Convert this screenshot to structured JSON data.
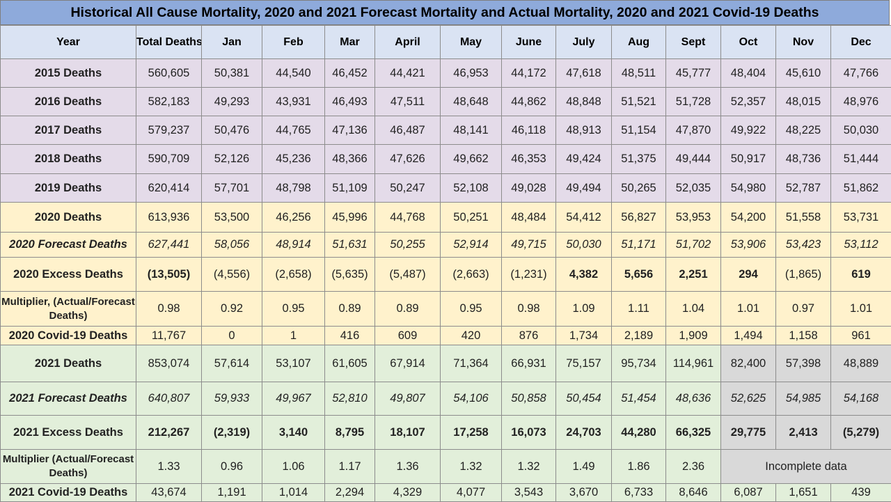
{
  "title": "Historical All Cause Mortality, 2020 and 2021 Forecast Mortality and Actual Mortality, 2020 and 2021 Covid-19 Deaths",
  "headers": [
    "Year",
    "Total Deaths",
    "Jan",
    "Feb",
    "Mar",
    "April",
    "May",
    "June",
    "July",
    "Aug",
    "Sept",
    "Oct",
    "Nov",
    "Dec"
  ],
  "rows": [
    {
      "label": "2015 Deaths",
      "values": [
        "560,605",
        "50,381",
        "44,540",
        "46,452",
        "44,421",
        "46,953",
        "44,172",
        "47,618",
        "48,511",
        "45,777",
        "48,404",
        "45,610",
        "47,766"
      ]
    },
    {
      "label": "2016 Deaths",
      "values": [
        "582,183",
        "49,293",
        "43,931",
        "46,493",
        "47,511",
        "48,648",
        "44,862",
        "48,848",
        "51,521",
        "51,728",
        "52,357",
        "48,015",
        "48,976"
      ]
    },
    {
      "label": "2017 Deaths",
      "values": [
        "579,237",
        "50,476",
        "44,765",
        "47,136",
        "46,487",
        "48,141",
        "46,118",
        "48,913",
        "51,154",
        "47,870",
        "49,922",
        "48,225",
        "50,030"
      ]
    },
    {
      "label": "2018 Deaths",
      "values": [
        "590,709",
        "52,126",
        "45,236",
        "48,366",
        "47,626",
        "49,662",
        "46,353",
        "49,424",
        "51,375",
        "49,444",
        "50,917",
        "48,736",
        "51,444"
      ]
    },
    {
      "label": "2019 Deaths",
      "values": [
        "620,414",
        "57,701",
        "48,798",
        "51,109",
        "50,247",
        "52,108",
        "49,028",
        "49,494",
        "50,265",
        "52,035",
        "54,980",
        "52,787",
        "51,862"
      ]
    },
    {
      "label": "2020 Deaths",
      "values": [
        "613,936",
        "53,500",
        "46,256",
        "45,996",
        "44,768",
        "50,251",
        "48,484",
        "54,412",
        "56,827",
        "53,953",
        "54,200",
        "51,558",
        "53,731"
      ]
    },
    {
      "label": "2020 Forecast Deaths",
      "values": [
        "627,441",
        "58,056",
        "48,914",
        "51,631",
        "50,255",
        "52,914",
        "49,715",
        "50,030",
        "51,171",
        "51,702",
        "53,906",
        "53,423",
        "53,112"
      ]
    },
    {
      "label": "2020 Excess Deaths",
      "values": [
        "(13,505)",
        "(4,556)",
        "(2,658)",
        "(5,635)",
        "(5,487)",
        "(2,663)",
        "(1,231)",
        "4,382",
        "5,656",
        "2,251",
        "294",
        "(1,865)",
        "619"
      ]
    },
    {
      "label": "Multiplier, (Actual/Forecast Deaths)",
      "values": [
        "0.98",
        "0.92",
        "0.95",
        "0.89",
        "0.89",
        "0.95",
        "0.98",
        "1.09",
        "1.11",
        "1.04",
        "1.01",
        "0.97",
        "1.01"
      ]
    },
    {
      "label": "2020 Covid-19 Deaths",
      "values": [
        "11,767",
        "0",
        "1",
        "416",
        "609",
        "420",
        "876",
        "1,734",
        "2,189",
        "1,909",
        "1,494",
        "1,158",
        "961"
      ]
    },
    {
      "label": "2021 Deaths",
      "values": [
        "853,074",
        "57,614",
        "53,107",
        "61,605",
        "67,914",
        "71,364",
        "66,931",
        "75,157",
        "95,734",
        "114,961",
        "82,400",
        "57,398",
        "48,889"
      ]
    },
    {
      "label": "2021 Forecast Deaths",
      "values": [
        "640,807",
        "59,933",
        "49,967",
        "52,810",
        "49,807",
        "54,106",
        "50,858",
        "50,454",
        "51,454",
        "48,636",
        "52,625",
        "54,985",
        "54,168"
      ]
    },
    {
      "label": "2021 Excess Deaths",
      "values": [
        "212,267",
        "(2,319)",
        "3,140",
        "8,795",
        "18,107",
        "17,258",
        "16,073",
        "24,703",
        "44,280",
        "66,325",
        "29,775",
        "2,413",
        "(5,279)"
      ]
    },
    {
      "label": "Multiplier (Actual/Forecast Deaths)",
      "values": [
        "1.33",
        "0.96",
        "1.06",
        "1.17",
        "1.36",
        "1.32",
        "1.32",
        "1.49",
        "1.86",
        "2.36"
      ],
      "note": "Incomplete data"
    },
    {
      "label": "2021 Covid-19 Deaths",
      "values": [
        "43,674",
        "1,191",
        "1,014",
        "2,294",
        "4,329",
        "4,077",
        "3,543",
        "3,670",
        "6,733",
        "8,646",
        "6,087",
        "1,651",
        "439"
      ]
    }
  ],
  "colors": {
    "title_bg": "#8eaadb",
    "header_bg": "#dae3f3",
    "historical_bg": "#e4dbe9",
    "year_2020_bg": "#fff2cc",
    "year_2021_bg": "#e2efda",
    "incomplete_bg": "#d9d9d9",
    "negative_text": "#548235",
    "positive_excess_text": "#ff0000"
  }
}
